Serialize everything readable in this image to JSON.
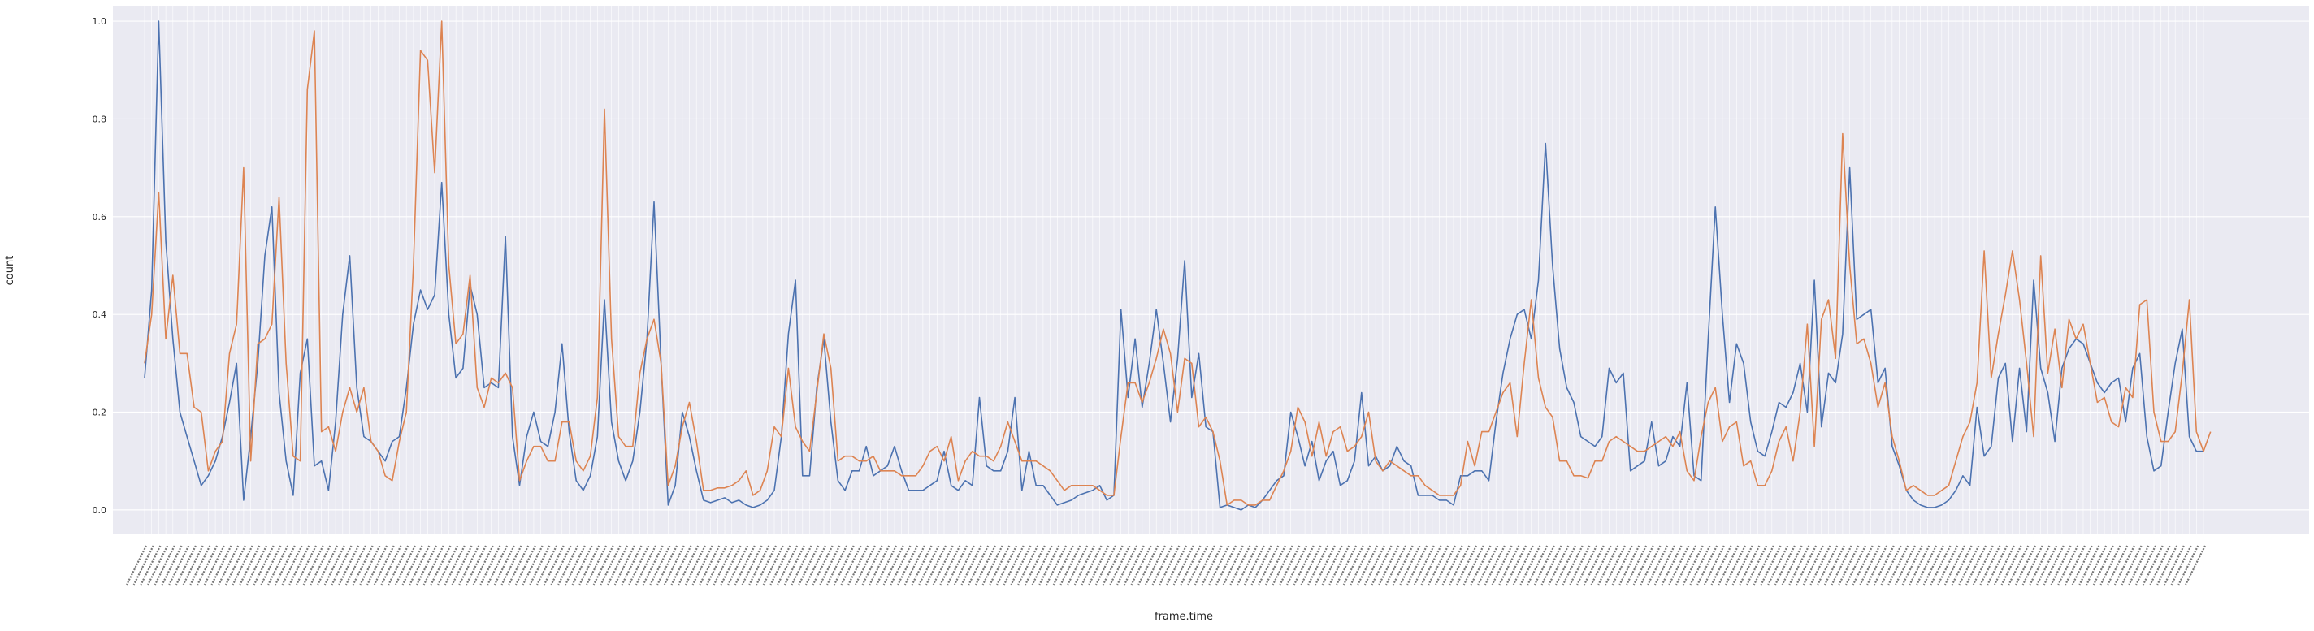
{
  "chart_data": {
    "type": "line",
    "xlabel": "frame.time",
    "ylabel": "count",
    "ylim": [
      -0.05,
      1.03
    ],
    "yticks": [
      0.0,
      0.2,
      0.4,
      0.6,
      0.8,
      1.0
    ],
    "ytick_labels": [
      "0.0",
      "0.2",
      "0.4",
      "0.6",
      "0.8",
      "1.0"
    ],
    "grid": true,
    "background": "#eaeaf2",
    "grid_color": "#ffffff",
    "x_tick_labels_note": "dense rotated timestamp labels, illegible at this resolution",
    "series": [
      {
        "color": "#4c72b0",
        "values": [
          0.27,
          0.45,
          1.0,
          0.55,
          0.35,
          0.2,
          0.15,
          0.1,
          0.05,
          0.07,
          0.1,
          0.15,
          0.22,
          0.3,
          0.02,
          0.15,
          0.3,
          0.52,
          0.62,
          0.24,
          0.1,
          0.03,
          0.28,
          0.35,
          0.09,
          0.1,
          0.04,
          0.18,
          0.4,
          0.52,
          0.25,
          0.15,
          0.14,
          0.12,
          0.1,
          0.14,
          0.15,
          0.25,
          0.38,
          0.45,
          0.41,
          0.44,
          0.67,
          0.4,
          0.27,
          0.29,
          0.46,
          0.4,
          0.25,
          0.26,
          0.25,
          0.56,
          0.15,
          0.05,
          0.15,
          0.2,
          0.14,
          0.13,
          0.2,
          0.34,
          0.16,
          0.06,
          0.04,
          0.07,
          0.15,
          0.43,
          0.18,
          0.1,
          0.06,
          0.1,
          0.2,
          0.35,
          0.63,
          0.3,
          0.01,
          0.05,
          0.2,
          0.15,
          0.08,
          0.02,
          0.015,
          0.02,
          0.025,
          0.015,
          0.02,
          0.01,
          0.005,
          0.01,
          0.02,
          0.04,
          0.15,
          0.36,
          0.47,
          0.07,
          0.07,
          0.25,
          0.35,
          0.18,
          0.06,
          0.04,
          0.08,
          0.08,
          0.13,
          0.07,
          0.08,
          0.09,
          0.13,
          0.08,
          0.04,
          0.04,
          0.04,
          0.05,
          0.06,
          0.12,
          0.05,
          0.04,
          0.06,
          0.05,
          0.23,
          0.09,
          0.08,
          0.08,
          0.12,
          0.23,
          0.04,
          0.12,
          0.05,
          0.05,
          0.03,
          0.01,
          0.015,
          0.02,
          0.03,
          0.035,
          0.04,
          0.05,
          0.02,
          0.03,
          0.41,
          0.23,
          0.35,
          0.21,
          0.3,
          0.41,
          0.3,
          0.18,
          0.31,
          0.51,
          0.23,
          0.32,
          0.17,
          0.16,
          0.005,
          0.01,
          0.005,
          0.0,
          0.01,
          0.005,
          0.02,
          0.04,
          0.06,
          0.07,
          0.2,
          0.15,
          0.09,
          0.14,
          0.06,
          0.1,
          0.12,
          0.05,
          0.06,
          0.1,
          0.24,
          0.09,
          0.11,
          0.08,
          0.09,
          0.13,
          0.1,
          0.09,
          0.03,
          0.03,
          0.03,
          0.02,
          0.02,
          0.01,
          0.07,
          0.07,
          0.08,
          0.08,
          0.06,
          0.18,
          0.28,
          0.35,
          0.4,
          0.41,
          0.35,
          0.47,
          0.75,
          0.5,
          0.33,
          0.25,
          0.22,
          0.15,
          0.14,
          0.13,
          0.15,
          0.29,
          0.26,
          0.28,
          0.08,
          0.09,
          0.1,
          0.18,
          0.09,
          0.1,
          0.15,
          0.13,
          0.26,
          0.07,
          0.06,
          0.35,
          0.62,
          0.4,
          0.22,
          0.34,
          0.3,
          0.18,
          0.12,
          0.11,
          0.16,
          0.22,
          0.21,
          0.24,
          0.3,
          0.2,
          0.47,
          0.17,
          0.28,
          0.26,
          0.36,
          0.7,
          0.39,
          0.4,
          0.41,
          0.26,
          0.29,
          0.13,
          0.09,
          0.04,
          0.02,
          0.01,
          0.005,
          0.005,
          0.01,
          0.02,
          0.04,
          0.07,
          0.05,
          0.21,
          0.11,
          0.13,
          0.27,
          0.3,
          0.14,
          0.29,
          0.16,
          0.47,
          0.29,
          0.24,
          0.14,
          0.29,
          0.33,
          0.35,
          0.34,
          0.3,
          0.26,
          0.24,
          0.26,
          0.27,
          0.18,
          0.29,
          0.32,
          0.15,
          0.08,
          0.09,
          0.2,
          0.3,
          0.37,
          0.15,
          0.12,
          0.12
        ]
      },
      {
        "color": "#dd8452",
        "values": [
          0.3,
          0.4,
          0.65,
          0.35,
          0.48,
          0.32,
          0.32,
          0.21,
          0.2,
          0.08,
          0.12,
          0.14,
          0.32,
          0.38,
          0.7,
          0.1,
          0.34,
          0.35,
          0.38,
          0.64,
          0.3,
          0.11,
          0.1,
          0.86,
          0.98,
          0.16,
          0.17,
          0.12,
          0.2,
          0.25,
          0.2,
          0.25,
          0.14,
          0.12,
          0.07,
          0.06,
          0.14,
          0.2,
          0.5,
          0.94,
          0.92,
          0.69,
          1.0,
          0.5,
          0.34,
          0.36,
          0.48,
          0.25,
          0.21,
          0.27,
          0.26,
          0.28,
          0.25,
          0.06,
          0.1,
          0.13,
          0.13,
          0.1,
          0.1,
          0.18,
          0.18,
          0.1,
          0.08,
          0.11,
          0.23,
          0.82,
          0.35,
          0.15,
          0.13,
          0.13,
          0.28,
          0.35,
          0.39,
          0.3,
          0.05,
          0.09,
          0.17,
          0.22,
          0.14,
          0.04,
          0.04,
          0.045,
          0.045,
          0.05,
          0.06,
          0.08,
          0.03,
          0.04,
          0.08,
          0.17,
          0.15,
          0.29,
          0.17,
          0.14,
          0.12,
          0.24,
          0.36,
          0.29,
          0.1,
          0.11,
          0.11,
          0.1,
          0.1,
          0.11,
          0.08,
          0.08,
          0.08,
          0.07,
          0.07,
          0.07,
          0.09,
          0.12,
          0.13,
          0.1,
          0.15,
          0.06,
          0.1,
          0.12,
          0.11,
          0.11,
          0.1,
          0.13,
          0.18,
          0.14,
          0.1,
          0.1,
          0.1,
          0.09,
          0.08,
          0.06,
          0.04,
          0.05,
          0.05,
          0.05,
          0.05,
          0.04,
          0.03,
          0.03,
          0.15,
          0.26,
          0.26,
          0.22,
          0.26,
          0.31,
          0.37,
          0.32,
          0.2,
          0.31,
          0.3,
          0.17,
          0.19,
          0.16,
          0.1,
          0.01,
          0.02,
          0.02,
          0.01,
          0.01,
          0.02,
          0.02,
          0.05,
          0.08,
          0.12,
          0.21,
          0.18,
          0.11,
          0.18,
          0.11,
          0.16,
          0.17,
          0.12,
          0.13,
          0.15,
          0.2,
          0.1,
          0.08,
          0.1,
          0.09,
          0.08,
          0.07,
          0.07,
          0.05,
          0.04,
          0.03,
          0.03,
          0.03,
          0.05,
          0.14,
          0.09,
          0.16,
          0.16,
          0.2,
          0.24,
          0.26,
          0.15,
          0.3,
          0.43,
          0.27,
          0.21,
          0.19,
          0.1,
          0.1,
          0.07,
          0.07,
          0.065,
          0.1,
          0.1,
          0.14,
          0.15,
          0.14,
          0.13,
          0.12,
          0.12,
          0.13,
          0.14,
          0.15,
          0.13,
          0.16,
          0.08,
          0.06,
          0.15,
          0.22,
          0.25,
          0.14,
          0.17,
          0.18,
          0.09,
          0.1,
          0.05,
          0.05,
          0.08,
          0.14,
          0.17,
          0.1,
          0.2,
          0.38,
          0.13,
          0.39,
          0.43,
          0.31,
          0.77,
          0.5,
          0.34,
          0.35,
          0.3,
          0.21,
          0.26,
          0.15,
          0.1,
          0.04,
          0.05,
          0.04,
          0.03,
          0.03,
          0.04,
          0.05,
          0.1,
          0.15,
          0.18,
          0.26,
          0.53,
          0.27,
          0.36,
          0.44,
          0.53,
          0.43,
          0.3,
          0.15,
          0.52,
          0.28,
          0.37,
          0.25,
          0.39,
          0.35,
          0.38,
          0.3,
          0.22,
          0.23,
          0.18,
          0.17,
          0.25,
          0.23,
          0.42,
          0.43,
          0.2,
          0.14,
          0.14,
          0.16,
          0.28,
          0.43,
          0.16,
          0.12,
          0.16
        ]
      }
    ]
  }
}
